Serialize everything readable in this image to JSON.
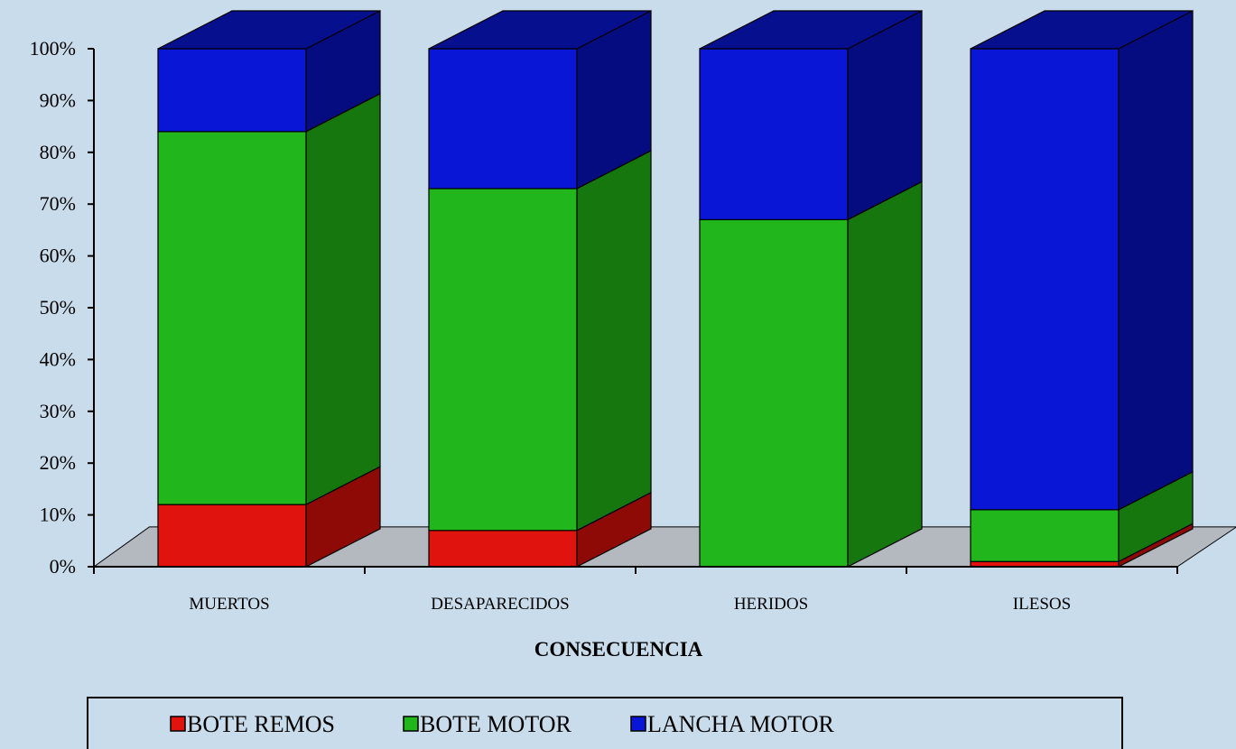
{
  "chart_data": {
    "type": "bar",
    "stacked": true,
    "percent_stacked": true,
    "three_d": true,
    "categories": [
      "MUERTOS",
      "DESAPARECIDOS",
      "HERIDOS",
      "ILESOS"
    ],
    "series": [
      {
        "name": "BOTE REMOS",
        "values": [
          12,
          7,
          0,
          1
        ]
      },
      {
        "name": "BOTE MOTOR",
        "values": [
          72,
          66,
          67,
          10
        ]
      },
      {
        "name": "LANCHA MOTOR",
        "values": [
          16,
          27,
          33,
          89
        ]
      }
    ],
    "y_ticks": [
      "0%",
      "10%",
      "20%",
      "30%",
      "40%",
      "50%",
      "60%",
      "70%",
      "80%",
      "90%",
      "100%"
    ],
    "ylim": [
      0,
      100
    ],
    "xlabel": "CONSECUENCIA",
    "ylabel": "",
    "title": "",
    "legend_position": "bottom",
    "grid": false
  },
  "colors": {
    "background": "#c9dcec",
    "floor": "#b4b8bf",
    "series_front": [
      "#e0130f",
      "#22b61d",
      "#0a16d6"
    ],
    "series_side": [
      "#8e0a07",
      "#16770f",
      "#050c80"
    ],
    "series_top": [
      "#c00e0b",
      "#1d9a18",
      "#06108f"
    ]
  }
}
